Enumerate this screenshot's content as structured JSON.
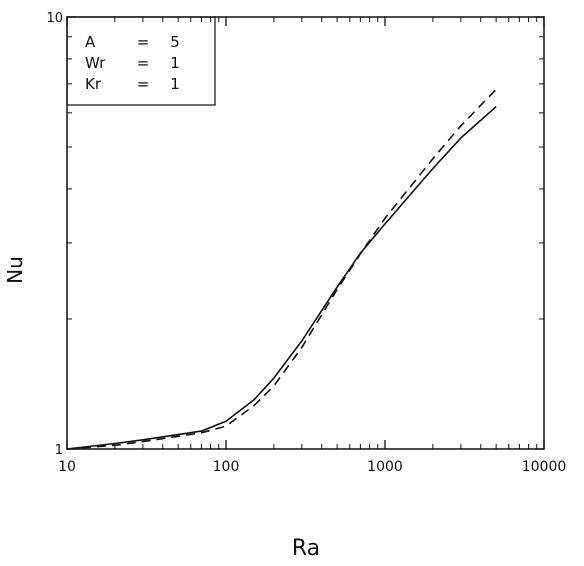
{
  "chart_data": {
    "type": "line",
    "xlabel": "Ra",
    "ylabel": "Nu",
    "x_scale": "log",
    "y_scale": "log",
    "xlim": [
      10,
      10000
    ],
    "ylim": [
      1,
      10
    ],
    "x_ticks": [
      {
        "value": 10,
        "label": "10"
      },
      {
        "value": 100,
        "label": "100"
      },
      {
        "value": 1000,
        "label": "1000"
      },
      {
        "value": 10000,
        "label": "10000"
      }
    ],
    "y_ticks": [
      {
        "value": 1,
        "label": "1"
      },
      {
        "value": 10,
        "label": "10"
      }
    ],
    "grid": false,
    "legend": {
      "placement": "top-left",
      "lines": [
        {
          "name": "A",
          "eq": "=",
          "value": "5"
        },
        {
          "name": "Wr",
          "eq": "=",
          "value": "1"
        },
        {
          "name": "Kr",
          "eq": "=",
          "value": "1"
        }
      ]
    },
    "series": [
      {
        "style": "solid",
        "color": "#111111",
        "x": [
          10,
          20,
          30,
          50,
          70,
          100,
          150,
          200,
          300,
          500,
          700,
          1000,
          2000,
          3000,
          5000
        ],
        "y": [
          1.0,
          1.03,
          1.05,
          1.08,
          1.1,
          1.16,
          1.3,
          1.46,
          1.78,
          2.37,
          2.84,
          3.32,
          4.46,
          5.25,
          6.2
        ]
      },
      {
        "style": "dashed",
        "color": "#111111",
        "x": [
          10,
          20,
          30,
          50,
          70,
          100,
          150,
          200,
          300,
          500,
          700,
          1000,
          2000,
          3000,
          5000
        ],
        "y": [
          1.0,
          1.02,
          1.04,
          1.07,
          1.09,
          1.13,
          1.26,
          1.4,
          1.72,
          2.34,
          2.83,
          3.42,
          4.7,
          5.6,
          6.8
        ]
      }
    ]
  }
}
